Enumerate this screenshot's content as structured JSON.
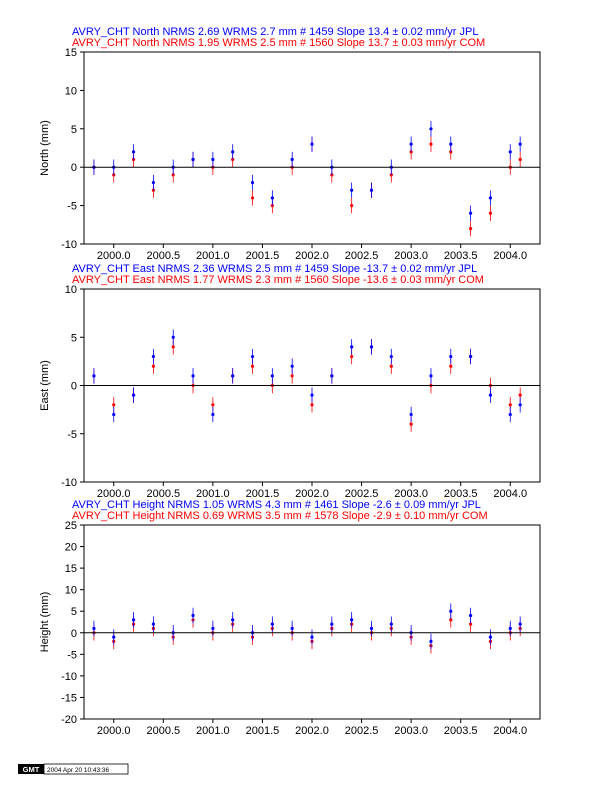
{
  "chart_data": [
    {
      "type": "scatter",
      "headers": [
        {
          "text": "AVRY_CHT North NRMS 2.69 WRMS  2.7 mm # 1459 Slope   13.4 ±  0.02 mm/yr JPL",
          "color": "#0000ff"
        },
        {
          "text": "AVRY_CHT North NRMS 1.95 WRMS  2.5 mm # 1560 Slope   13.7 ±  0.03 mm/yr COM",
          "color": "#ff0000"
        }
      ],
      "ylabel": "North (mm)",
      "xlim": [
        1999.7,
        2004.3
      ],
      "ylim": [
        -10,
        15
      ],
      "yticks": [
        "-10",
        "-5",
        "0",
        "5",
        "10",
        "15"
      ],
      "xticks": [
        "2000.0",
        "2000.5",
        "2001.0",
        "2001.5",
        "2002.0",
        "2002.5",
        "2003.0",
        "2003.5",
        "2004.0"
      ],
      "xtick_values": [
        2000.0,
        2000.5,
        2001.0,
        2001.5,
        2002.0,
        2002.5,
        2003.0,
        2003.5,
        2004.0
      ],
      "baseline": 0,
      "series": [
        {
          "color": "#ff0000",
          "x": [
            1999.8,
            2000.0,
            2000.2,
            2000.4,
            2000.6,
            2000.8,
            2001.0,
            2001.2,
            2001.4,
            2001.6,
            2001.8,
            2002.0,
            2002.2,
            2002.4,
            2002.6,
            2002.8,
            2003.0,
            2003.2,
            2003.4,
            2003.6,
            2003.8,
            2004.0,
            2004.1
          ],
          "y": [
            0,
            -1,
            1,
            -3,
            -1,
            1,
            0,
            1,
            -4,
            -5,
            0,
            3,
            -1,
            -5,
            -3,
            -1,
            2,
            3,
            2,
            -8,
            -6,
            0,
            1
          ]
        },
        {
          "color": "#0000ff",
          "x": [
            1999.8,
            2000.0,
            2000.2,
            2000.4,
            2000.6,
            2000.8,
            2001.0,
            2001.2,
            2001.4,
            2001.6,
            2001.8,
            2002.0,
            2002.2,
            2002.4,
            2002.6,
            2002.8,
            2003.0,
            2003.2,
            2003.4,
            2003.6,
            2003.8,
            2004.0,
            2004.1
          ],
          "y": [
            0,
            0,
            2,
            -2,
            0,
            1,
            1,
            2,
            -2,
            -4,
            1,
            3,
            0,
            -3,
            -3,
            0,
            3,
            5,
            3,
            -6,
            -4,
            2,
            3
          ]
        }
      ]
    },
    {
      "type": "scatter",
      "headers": [
        {
          "text": "AVRY_CHT East NRMS 2.36 WRMS  2.5 mm # 1459 Slope  -13.7 ±  0.02 mm/yr JPL",
          "color": "#0000ff"
        },
        {
          "text": "AVRY_CHT East NRMS 1.77 WRMS  2.3 mm # 1560 Slope  -13.6 ±  0.03 mm/yr COM",
          "color": "#ff0000"
        }
      ],
      "ylabel": "East (mm)",
      "xlim": [
        1999.7,
        2004.3
      ],
      "ylim": [
        -10,
        10
      ],
      "yticks": [
        "-10",
        "-5",
        "0",
        "5",
        "10"
      ],
      "xticks": [
        "2000.0",
        "2000.5",
        "2001.0",
        "2001.5",
        "2002.0",
        "2002.5",
        "2003.0",
        "2003.5",
        "2004.0"
      ],
      "xtick_values": [
        2000.0,
        2000.5,
        2001.0,
        2001.5,
        2002.0,
        2002.5,
        2003.0,
        2003.5,
        2004.0
      ],
      "baseline": 0,
      "series": [
        {
          "color": "#ff0000",
          "x": [
            1999.8,
            2000.0,
            2000.2,
            2000.4,
            2000.6,
            2000.8,
            2001.0,
            2001.2,
            2001.4,
            2001.6,
            2001.8,
            2002.0,
            2002.2,
            2002.4,
            2002.6,
            2002.8,
            2003.0,
            2003.2,
            2003.4,
            2003.6,
            2003.8,
            2004.0,
            2004.1
          ],
          "y": [
            1,
            -2,
            -1,
            2,
            4,
            0,
            -2,
            1,
            2,
            0,
            1,
            -2,
            1,
            3,
            4,
            2,
            -4,
            0,
            2,
            3,
            0,
            -2,
            -1
          ]
        },
        {
          "color": "#0000ff",
          "x": [
            1999.8,
            2000.0,
            2000.2,
            2000.4,
            2000.6,
            2000.8,
            2001.0,
            2001.2,
            2001.4,
            2001.6,
            2001.8,
            2002.0,
            2002.2,
            2002.4,
            2002.6,
            2002.8,
            2003.0,
            2003.2,
            2003.4,
            2003.6,
            2003.8,
            2004.0,
            2004.1
          ],
          "y": [
            1,
            -3,
            -1,
            3,
            5,
            1,
            -3,
            1,
            3,
            1,
            2,
            -1,
            1,
            4,
            4,
            3,
            -3,
            1,
            3,
            3,
            -1,
            -3,
            -2
          ]
        }
      ]
    },
    {
      "type": "scatter",
      "headers": [
        {
          "text": "AVRY_CHT Height NRMS 1.05 WRMS  4.3 mm # 1461 Slope   -2.6 ±  0.09 mm/yr JPL",
          "color": "#0000ff"
        },
        {
          "text": "AVRY_CHT Height NRMS 0.69 WRMS  3.5 mm # 1578 Slope   -2.9 ±  0.10 mm/yr COM",
          "color": "#ff0000"
        }
      ],
      "ylabel": "Height (mm)",
      "xlim": [
        1999.7,
        2004.3
      ],
      "ylim": [
        -20,
        25
      ],
      "yticks": [
        "-20",
        "-15",
        "-10",
        "-5",
        "0",
        "5",
        "10",
        "15",
        "20",
        "25"
      ],
      "xticks": [
        "2000.0",
        "2000.5",
        "2001.0",
        "2001.5",
        "2002.0",
        "2002.5",
        "2003.0",
        "2003.5",
        "2004.0"
      ],
      "xtick_values": [
        2000.0,
        2000.5,
        2001.0,
        2001.5,
        2002.0,
        2002.5,
        2003.0,
        2003.5,
        2004.0
      ],
      "baseline": 0,
      "series": [
        {
          "color": "#ff0000",
          "x": [
            1999.8,
            2000.0,
            2000.2,
            2000.4,
            2000.6,
            2000.8,
            2001.0,
            2001.2,
            2001.4,
            2001.6,
            2001.8,
            2002.0,
            2002.2,
            2002.4,
            2002.6,
            2002.8,
            2003.0,
            2003.2,
            2003.4,
            2003.6,
            2003.8,
            2004.0,
            2004.1
          ],
          "y": [
            0,
            -2,
            2,
            1,
            -1,
            3,
            0,
            2,
            -1,
            1,
            0,
            -2,
            1,
            2,
            0,
            1,
            -1,
            -3,
            3,
            2,
            -2,
            0,
            1
          ]
        },
        {
          "color": "#0000ff",
          "x": [
            1999.8,
            2000.0,
            2000.2,
            2000.4,
            2000.6,
            2000.8,
            2001.0,
            2001.2,
            2001.4,
            2001.6,
            2001.8,
            2002.0,
            2002.2,
            2002.4,
            2002.6,
            2002.8,
            2003.0,
            2003.2,
            2003.4,
            2003.6,
            2003.8,
            2004.0,
            2004.1
          ],
          "y": [
            1,
            -1,
            3,
            2,
            0,
            4,
            1,
            3,
            0,
            2,
            1,
            -1,
            2,
            3,
            1,
            2,
            0,
            -2,
            5,
            4,
            -1,
            1,
            2
          ]
        }
      ]
    }
  ],
  "footer": {
    "logo": "GMT",
    "timestamp": "2004 Apr 20 10:43:36"
  }
}
